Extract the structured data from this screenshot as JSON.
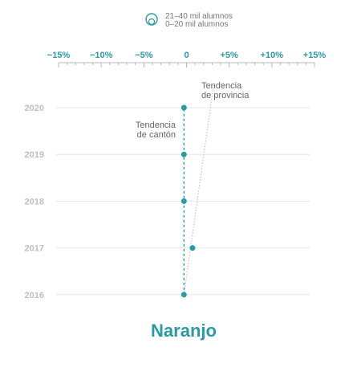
{
  "legend": {
    "items": [
      {
        "label": "21–40 mil alumnos",
        "icon": "large-circle-icon"
      },
      {
        "label": "0–20 mil alumnos",
        "icon": "small-circle-icon"
      }
    ]
  },
  "colors": {
    "accent": "#2a9aa4",
    "year_label": "#bfbfbf",
    "grid": "#e6e6e6",
    "province_line": "#bbbbbb",
    "annotation": "#666666"
  },
  "chart_data": {
    "type": "scatter",
    "title": "Naranjo",
    "xlabel": "",
    "ylabel": "",
    "xlim": [
      -15,
      15
    ],
    "x_ticks": [
      -15,
      -10,
      -5,
      0,
      5,
      10,
      15
    ],
    "x_tick_labels": [
      "−15%",
      "−10%",
      "−5%",
      "0",
      "+5%",
      "+10%",
      "+15%"
    ],
    "categories": [
      "2020",
      "2019",
      "2018",
      "2017",
      "2016"
    ],
    "series": [
      {
        "name": "",
        "values": [
          -0.3,
          -0.3,
          -0.3,
          0.7,
          -0.3
        ]
      }
    ],
    "trend_lines": [
      {
        "label": "Tendencia de cantón",
        "lines": [
          "Tendencia",
          "de cantón"
        ],
        "from": {
          "year": "2016",
          "x": -0.3
        },
        "to": {
          "year": "2020",
          "x": -0.3
        },
        "style": "dashed"
      },
      {
        "label": "Tendencia de provincia",
        "lines": [
          "Tendencia",
          "de provincia"
        ],
        "from": {
          "year": "2016",
          "x": -0.3
        },
        "to": {
          "year": "2020",
          "x": 2.8
        },
        "style": "dotted"
      }
    ],
    "grid": true
  }
}
